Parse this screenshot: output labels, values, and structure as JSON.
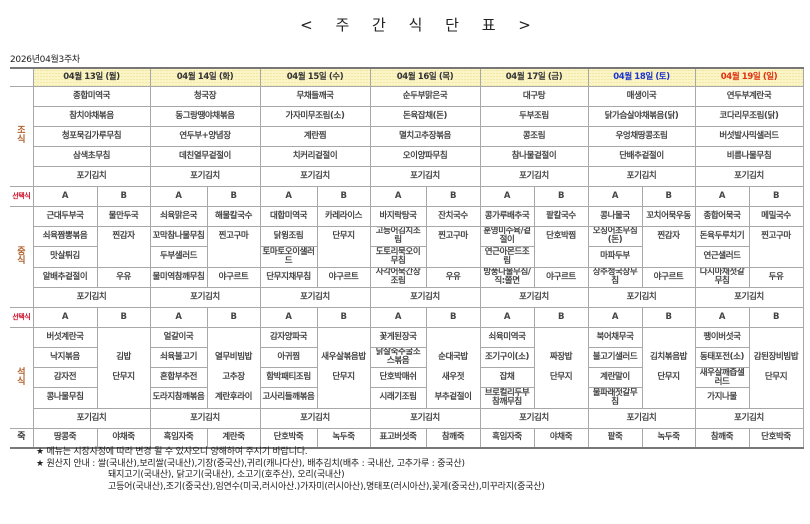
{
  "title": "< 주 간 식 단 표 >",
  "week_label": "2026년04월3주차",
  "colors": {
    "weekday": "#333333",
    "saturday": "#1a33cc",
    "sunday": "#e03010",
    "meal_label": "#b0602a",
    "choice_label": "#d0102a",
    "header_bg": "#fbf5c6"
  },
  "labels": {
    "breakfast": [
      "조",
      "식"
    ],
    "lunch": [
      "중",
      "식"
    ],
    "dinner": [
      "석",
      "식"
    ],
    "choice": "선택식",
    "porridge": "죽",
    "a": "A",
    "b": "B"
  },
  "days": [
    {
      "label": "04월 13일 (월)",
      "type": "weekday"
    },
    {
      "label": "04월 14일 (화)",
      "type": "weekday"
    },
    {
      "label": "04월 15일 (수)",
      "type": "weekday"
    },
    {
      "label": "04월 16일 (목)",
      "type": "weekday"
    },
    {
      "label": "04월 17일 (금)",
      "type": "weekday"
    },
    {
      "label": "04월 18일 (토)",
      "type": "saturday"
    },
    {
      "label": "04월 19일 (일)",
      "type": "sunday"
    }
  ],
  "breakfast": [
    [
      "종합미역국",
      "참치야채볶음",
      "청포묵김가루무침",
      "삼색초무침",
      "포기김치"
    ],
    [
      "청국장",
      "동그랑땡야채볶음",
      "연두부+양념장",
      "데친열무겉절이",
      "포기김치"
    ],
    [
      "무채들깨국",
      "가자미무조림(소)",
      "계란찜",
      "치커리겉절이",
      "포기김치"
    ],
    [
      "순두부맑은국",
      "돈육잡채(돈)",
      "멸치고추장볶음",
      "오이양파무침",
      "포기김치"
    ],
    [
      "대구탕",
      "두부조림",
      "콩조림",
      "참나물겉절이",
      "포기김치"
    ],
    [
      "매생이국",
      "닭가슴살야채볶음(닭)",
      "우엉채땅콩조림",
      "단배추겉절이",
      "포기김치"
    ],
    [
      "연두부계란국",
      "코다리무조림(닭)",
      "버섯발사믹샐러드",
      "비름나물무침",
      "포기김치"
    ]
  ],
  "lunch": [
    {
      "a": [
        "근대두부국",
        "쇠육짬뽕볶음",
        "맛살튀김",
        "알배추겉절이"
      ],
      "b": [
        "물만두국",
        "찐감자",
        "우유"
      ],
      "kimchi": "포기김치"
    },
    {
      "a": [
        "쇠육맑은국",
        "꼬막참나물무침",
        "두부샐러드",
        "물미역참깨무침"
      ],
      "b": [
        "해물칼국수",
        "찐고구마",
        "야구르트"
      ],
      "kimchi": "포기김치"
    },
    {
      "a": [
        "대합미역국",
        "닭윙조림",
        "토마토오이샐러드",
        "단무지채무침"
      ],
      "b": [
        "카레라이스",
        "단무지",
        "야구르트"
      ],
      "kimchi": "포기김치"
    },
    {
      "a": [
        "바지락탕국",
        "고등어김치조림",
        "도토리묵오이무침",
        "사각어묵간장조림"
      ],
      "b": [
        "잔치국수",
        "찐고구마",
        "우유"
      ],
      "kimchi": "포기김치"
    },
    {
      "a": [
        "콩가루배추국",
        "훈영미수육/겉절이",
        "연근아몬드조림",
        "방풍나물무침/직:쫄면"
      ],
      "b": [
        "팥칼국수",
        "단호박찜",
        "야구르트"
      ],
      "kimchi": "포기김치"
    },
    {
      "a": [
        "콩나물국",
        "오징어초무침(돈)",
        "마파두부",
        "상추청국장무침"
      ],
      "b": [
        "꼬치어묵우동",
        "찐감자",
        "야구르트"
      ],
      "kimchi": "포기김치"
    },
    {
      "a": [
        "종합어묵국",
        "돈육두루치기",
        "연근샐러드",
        "다시마채젓갈무침"
      ],
      "b": [
        "메밀국수",
        "찐고구마",
        "두유"
      ],
      "kimchi": "포기김치"
    }
  ],
  "dinner": [
    {
      "a": [
        "버섯계란국",
        "낙지볶음",
        "감자전",
        "콩나물무침"
      ],
      "b": [
        "",
        "김밥",
        "단무지",
        ""
      ],
      "kimchi": "포기김치"
    },
    {
      "a": [
        "얼갈이국",
        "쇠육불고기",
        "혼합부추전",
        "도라지참깨볶음"
      ],
      "b": [
        "",
        "열무비빔밥",
        "고추장",
        "계란후라이"
      ],
      "kimchi": "포기김치"
    },
    {
      "a": [
        "감자양파국",
        "아귀찜",
        "함박패티조림",
        "고사리들깨볶음"
      ],
      "b": [
        "",
        "새우살볶음밥",
        "단무지",
        ""
      ],
      "kimchi": "포기김치"
    },
    {
      "a": [
        "꽃게된장국",
        "닭살숙주굴소스볶음",
        "단호박매쉬",
        "시래기조림"
      ],
      "b": [
        "",
        "순대국밥",
        "새우젓",
        "부추겉절이"
      ],
      "kimchi": "포기김치"
    },
    {
      "a": [
        "쇠육미역국",
        "조기구이(소)",
        "잡채",
        "브로컬리두부참깨무침"
      ],
      "b": [
        "",
        "짜장밥",
        "단무지",
        ""
      ],
      "kimchi": "포기김치"
    },
    {
      "a": [
        "북어채무국",
        "불고기샐러드",
        "계란말이",
        "물파래젓갈무침"
      ],
      "b": [
        "",
        "김치볶음밥",
        "단무지",
        ""
      ],
      "kimchi": "포기김치"
    },
    {
      "a": [
        "팽이버섯국",
        "동태포전(소)",
        "새우살깨즙샐러드",
        "가지나물"
      ],
      "b": [
        "",
        "감된장비빔밥",
        "단무지",
        ""
      ],
      "kimchi": "포기김치"
    }
  ],
  "porridge": [
    [
      "땅콩죽",
      "야채죽"
    ],
    [
      "흑임자죽",
      "계란죽"
    ],
    [
      "단호박죽",
      "녹두죽"
    ],
    [
      "표고버섯죽",
      "참깨죽"
    ],
    [
      "흑임자죽",
      "야채죽"
    ],
    [
      "팥죽",
      "녹두죽"
    ],
    [
      "참깨죽",
      "단호박죽"
    ]
  ],
  "footer": [
    "★ 메뉴는 시장사정에 따라 변경 될 수 있사오니 양해하여 주시기 바랍니다.",
    "★ 원산지 안내 : 쌀(국내산),보리쌀(국내산),기장(중국산),귀리(캐나다산), 배추김치(배추 : 국내산,  고추가루 : 중국산)",
    "돼지고기(국내산), 닭고기(국내산), 소고기(호주산), 오리(국내산)",
    "고등어(국내산),조기(중국산),임연수(미국,러시아산.)가자미(러시아산),명태포(러시아산),꽃게(중국산),미꾸라지(중국산)"
  ]
}
